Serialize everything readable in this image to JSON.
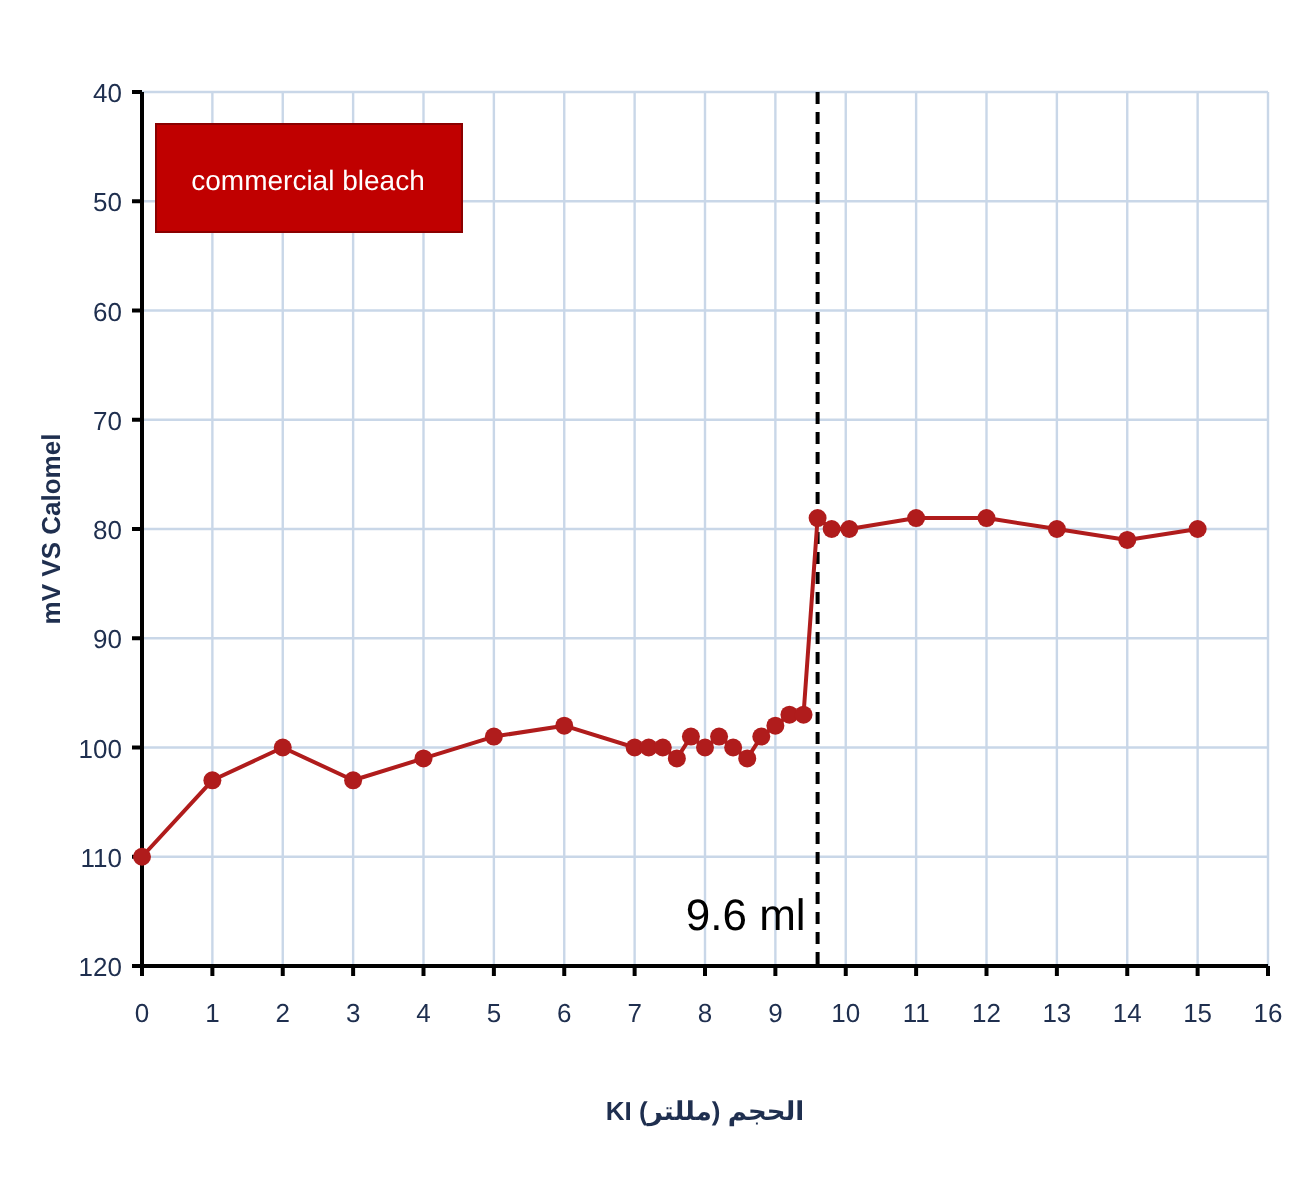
{
  "chart_data": {
    "type": "line",
    "xlabel": "الحجم (مللتر) KI",
    "ylabel": "mV VS Calomel",
    "x": [
      0,
      1,
      2,
      3,
      4,
      5,
      6,
      7,
      7.2,
      7.4,
      7.6,
      7.8,
      8,
      8.2,
      8.4,
      8.6,
      8.8,
      9,
      9.2,
      9.4,
      9.6,
      9.8,
      10.05,
      11,
      12,
      13,
      14,
      15
    ],
    "series": [
      {
        "color": "#b01c1c",
        "values": [
          110,
          103,
          100,
          103,
          101,
          99,
          98,
          100,
          100,
          100,
          101,
          99,
          100,
          99,
          100,
          101,
          99,
          98,
          97,
          97,
          79,
          80,
          80,
          79,
          79,
          80,
          81,
          80
        ]
      }
    ],
    "xlim": [
      0,
      16
    ],
    "xticks": [
      0,
      1,
      2,
      3,
      4,
      5,
      6,
      7,
      8,
      9,
      10,
      11,
      12,
      13,
      14,
      15,
      16
    ],
    "ylim": [
      120,
      40
    ],
    "yticks": [
      40,
      50,
      60,
      70,
      80,
      90,
      100,
      110,
      120
    ],
    "grid": true,
    "marker": "circle",
    "line_style": "solid",
    "ref_lines": [
      {
        "axis": "x",
        "value": 9.6,
        "label": "9.6 ml",
        "color": "#000000",
        "line_style": "dashed"
      }
    ],
    "annotations": [
      "commercial bleach"
    ]
  }
}
